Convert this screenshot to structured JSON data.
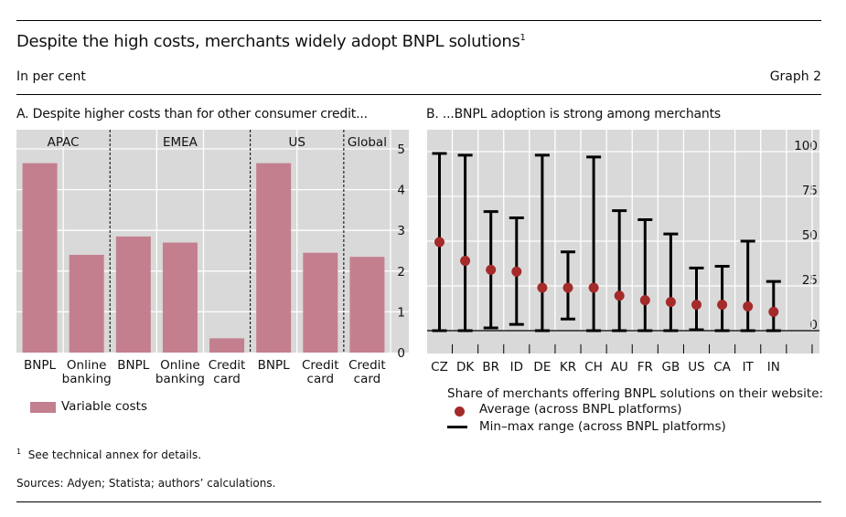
{
  "header": {
    "title": "Despite the high costs, merchants widely adopt BNPL solutions",
    "title_footnote_mark": "1",
    "unit": "In per cent",
    "graph_number": "Graph 2"
  },
  "colors": {
    "bar": "#c47f8f",
    "dot": "#a52a2a",
    "range": "#000000",
    "panel_bg": "#d9d9d9"
  },
  "chart_data": [
    {
      "type": "bar",
      "title": "A. Despite higher costs than for other consumer credit...",
      "groups": [
        {
          "name": "APAC",
          "span": 2
        },
        {
          "name": "EMEA",
          "span": 3
        },
        {
          "name": "US",
          "span": 2
        },
        {
          "name": "Global",
          "span": 1
        }
      ],
      "categories": [
        "BNPL",
        "Online banking",
        "BNPL",
        "Online banking",
        "Credit card",
        "BNPL",
        "Credit card",
        "Credit card"
      ],
      "category_lines": [
        [
          "BNPL"
        ],
        [
          "Online",
          "banking"
        ],
        [
          "BNPL"
        ],
        [
          "Online",
          "banking"
        ],
        [
          "Credit",
          "card"
        ],
        [
          "BNPL"
        ],
        [
          "Credit",
          "card"
        ],
        [
          "Credit",
          "card"
        ]
      ],
      "series": [
        {
          "name": "Variable costs",
          "values": [
            4.65,
            2.4,
            2.85,
            2.7,
            0.35,
            4.65,
            2.45,
            2.35
          ]
        }
      ],
      "ylim": [
        0,
        5
      ],
      "yticks": [
        "0",
        "1",
        "2",
        "3",
        "4",
        "5"
      ],
      "y_axis_side": "right",
      "grid": true,
      "legend": "bottom-left"
    },
    {
      "type": "scatter",
      "subtype": "range-dot",
      "title": "B. ...BNPL adoption is strong among merchants",
      "categories": [
        "CZ",
        "DK",
        "BR",
        "ID",
        "DE",
        "KR",
        "CH",
        "AU",
        "FR",
        "GB",
        "US",
        "CA",
        "IT",
        "IN"
      ],
      "series": [
        {
          "name": "Average (across BNPL platforms)",
          "values": [
            49.5,
            39,
            34,
            33,
            24,
            24,
            24,
            19.5,
            17,
            16,
            14.5,
            14.5,
            13.5,
            10.5
          ]
        },
        {
          "name": "Min–max range (across BNPL platforms)",
          "min": [
            0,
            0,
            1.5,
            3.5,
            0,
            6.5,
            0,
            0,
            0,
            0,
            0.5,
            0,
            0,
            0
          ],
          "max": [
            99,
            98,
            66.5,
            63,
            98,
            44,
            97,
            67,
            62,
            54,
            35,
            36,
            50,
            27.5
          ]
        }
      ],
      "ylim": [
        0,
        100
      ],
      "yticks": [
        "0",
        "25",
        "50",
        "75",
        "100"
      ],
      "y_axis_side": "right",
      "legend_title": "Share of merchants offering BNPL solutions on their website:",
      "legend": "bottom-right"
    }
  ],
  "footnotes": {
    "note_mark": "1",
    "note": "See technical annex for details.",
    "sources": "Sources: Adyen; Statista; authors’ calculations."
  }
}
